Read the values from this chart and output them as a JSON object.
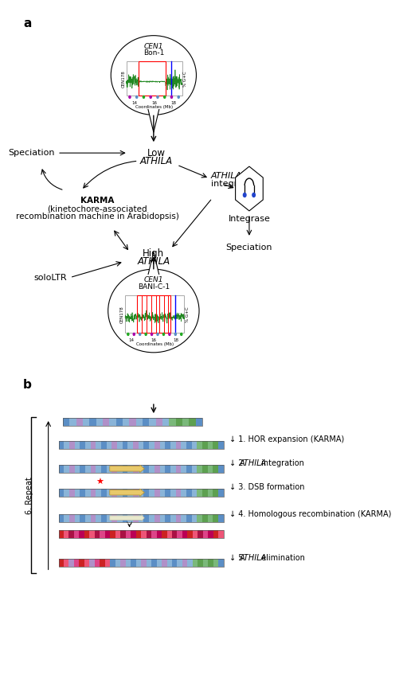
{
  "bg_color": "#ffffff",
  "panel_a_label": "a",
  "panel_b_label": "b",
  "top_inset_title1": "CEN1",
  "top_inset_title2": "Bon-1",
  "bot_inset_title1": "CEN1",
  "bot_inset_title2": "BANI-C-1",
  "inset_xlabel": "Coordinates (Mb)",
  "inset_ylabel_left": "CEN178",
  "inset_ylabel_right": "% G+C",
  "low_athila": "Low\nATHILA",
  "high_athila": "High\nATHILA",
  "speciation1": "Speciation",
  "speciation2": "Speciation",
  "karma_line1": "KARMA",
  "karma_line2": "(kinetochore-associated",
  "karma_line3": "recombination machine in Arabidopsis)",
  "athila_int_line1": "ATHILA",
  "athila_int_line2": "integration",
  "integrase": "Integrase",
  "sololtr": "soloLTR",
  "step1": "1. HOR expansion (KARMA)",
  "step2_prefix": "2. ",
  "step2_italic": "ATHILA",
  "step2_suffix": " integration",
  "step3": "3. DSB formation",
  "step4": "4. Homologous recombination (KARMA)",
  "step5_prefix": "5. ",
  "step5_italic": "ATHILA",
  "step5_suffix": " elimination",
  "step6": "6. Repeat"
}
